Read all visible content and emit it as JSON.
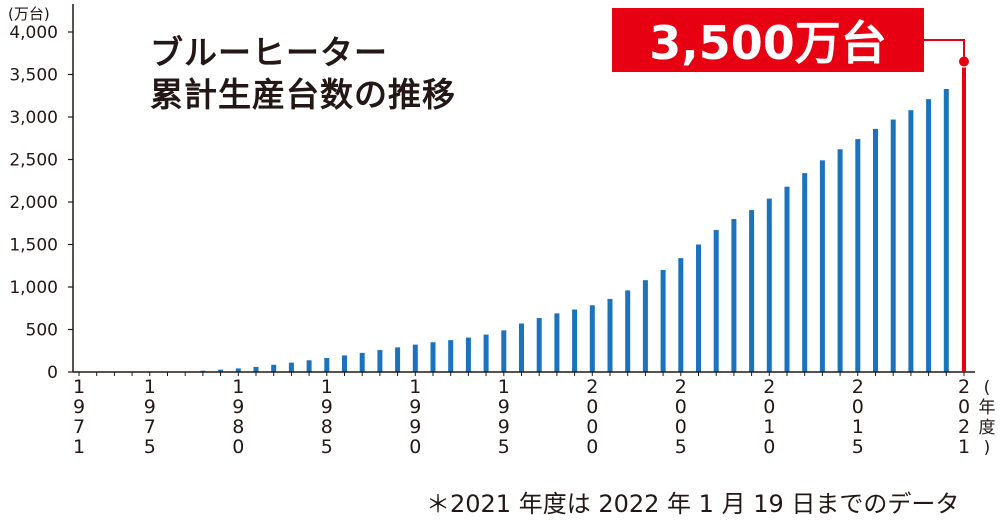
{
  "chart_data": {
    "type": "bar",
    "title_line1": "ブルーヒーター",
    "title_line2": "累計生産台数の推移",
    "y_unit": "(万台)",
    "x_unit": "(年度)",
    "ylim": [
      0,
      4000
    ],
    "yticks": [
      "4,000",
      "3,500",
      "3,000",
      "2,500",
      "2,000",
      "1,500",
      "1,000",
      "500",
      "0"
    ],
    "ytick_values": [
      4000,
      3500,
      3000,
      2500,
      2000,
      1500,
      1000,
      500,
      0
    ],
    "x_years": [
      1971,
      1972,
      1973,
      1974,
      1975,
      1976,
      1977,
      1978,
      1979,
      1980,
      1981,
      1982,
      1983,
      1984,
      1985,
      1986,
      1987,
      1988,
      1989,
      1990,
      1991,
      1992,
      1993,
      1994,
      1995,
      1996,
      1997,
      1998,
      1999,
      2000,
      2001,
      2002,
      2003,
      2004,
      2005,
      2006,
      2007,
      2008,
      2009,
      2010,
      2011,
      2012,
      2013,
      2014,
      2015,
      2016,
      2017,
      2018,
      2019,
      2020,
      2021
    ],
    "values": [
      0,
      0,
      0,
      0,
      0,
      0,
      5,
      15,
      28,
      42,
      60,
      85,
      110,
      138,
      165,
      195,
      225,
      258,
      290,
      322,
      350,
      375,
      405,
      440,
      490,
      570,
      635,
      690,
      735,
      785,
      860,
      960,
      1080,
      1200,
      1340,
      1500,
      1670,
      1800,
      1905,
      2040,
      2180,
      2340,
      2490,
      2620,
      2740,
      2860,
      2970,
      3080,
      3210,
      3330,
      3500
    ],
    "highlight_index": 50,
    "x_tick_labels": [
      {
        "year": 1971,
        "digits": [
          "1",
          "9",
          "7",
          "1"
        ]
      },
      {
        "year": 1975,
        "digits": [
          "1",
          "9",
          "7",
          "5"
        ]
      },
      {
        "year": 1980,
        "digits": [
          "1",
          "9",
          "8",
          "0"
        ]
      },
      {
        "year": 1985,
        "digits": [
          "1",
          "9",
          "8",
          "5"
        ]
      },
      {
        "year": 1990,
        "digits": [
          "1",
          "9",
          "9",
          "0"
        ]
      },
      {
        "year": 1995,
        "digits": [
          "1",
          "9",
          "9",
          "5"
        ]
      },
      {
        "year": 2000,
        "digits": [
          "2",
          "0",
          "0",
          "0"
        ]
      },
      {
        "year": 2005,
        "digits": [
          "2",
          "0",
          "0",
          "5"
        ]
      },
      {
        "year": 2010,
        "digits": [
          "2",
          "0",
          "1",
          "0"
        ]
      },
      {
        "year": 2015,
        "digits": [
          "2",
          "0",
          "1",
          "5"
        ]
      },
      {
        "year": 2021,
        "digits": [
          "2",
          "0",
          "2",
          "1"
        ]
      }
    ],
    "x_unit_chars": [
      "(",
      "年",
      "度",
      ")"
    ],
    "callout_text": "3,500万台",
    "footnote": "＊2021 年度は 2022 年 1 月 19 日までのデータ",
    "colors": {
      "bar": "#1b72bd",
      "highlight": "#e60012",
      "axis": "#231815",
      "text": "#231815"
    }
  }
}
